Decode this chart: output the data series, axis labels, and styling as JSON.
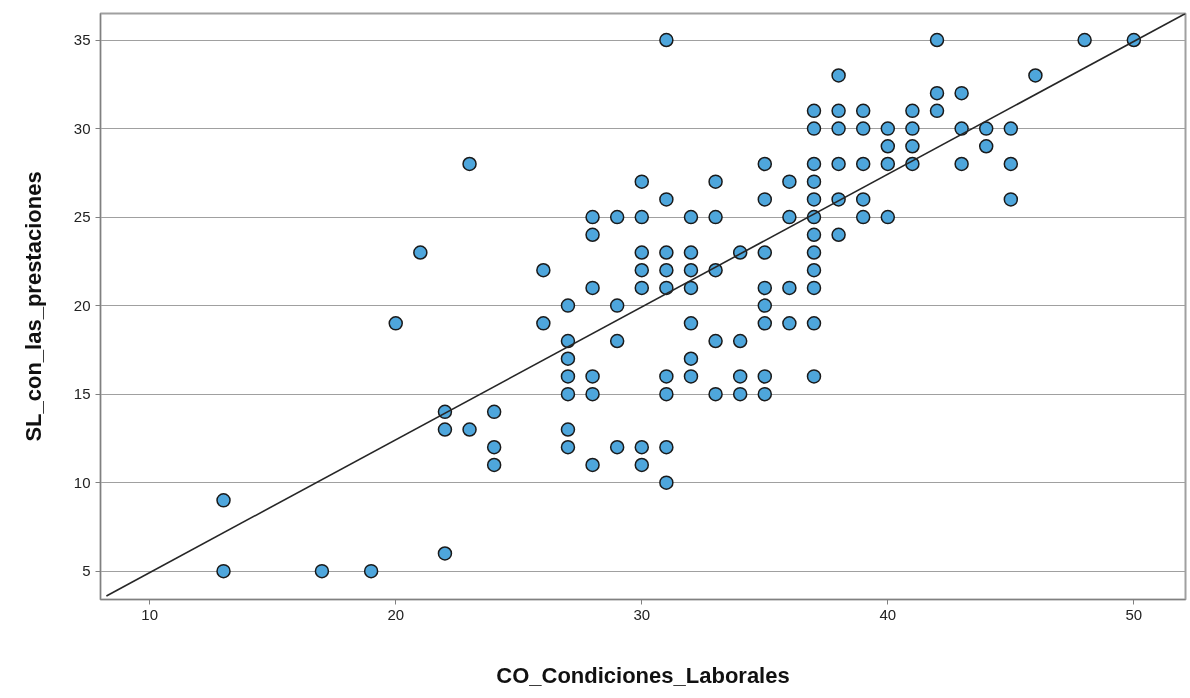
{
  "chart_data": {
    "type": "scatter",
    "xlabel": "CO_Condiciones_Laborales",
    "ylabel": "SL_con_las_prestaciones",
    "xlim": [
      8,
      52.1
    ],
    "ylim": [
      3.4,
      36.5
    ],
    "xticks": [
      10,
      20,
      30,
      40,
      50
    ],
    "yticks": [
      5,
      10,
      15,
      20,
      25,
      30,
      35
    ],
    "grid": "y",
    "marker": "circle",
    "series": [
      {
        "color": "#4ea6dc",
        "x": [
          13,
          13,
          17,
          19,
          20,
          21,
          22,
          22,
          22,
          23,
          23,
          24,
          24,
          24,
          26,
          26,
          27,
          27,
          27,
          27,
          27,
          27,
          27,
          28,
          28,
          28,
          28,
          28,
          28,
          29,
          29,
          29,
          29,
          30,
          30,
          30,
          30,
          30,
          30,
          30,
          31,
          31,
          31,
          31,
          31,
          31,
          31,
          31,
          31,
          32,
          32,
          32,
          32,
          32,
          32,
          32,
          33,
          33,
          33,
          33,
          33,
          34,
          34,
          34,
          34,
          35,
          35,
          35,
          35,
          35,
          35,
          35,
          35,
          36,
          36,
          36,
          36,
          37,
          37,
          37,
          37,
          37,
          37,
          37,
          37,
          37,
          37,
          37,
          37,
          38,
          38,
          38,
          38,
          38,
          38,
          39,
          39,
          39,
          39,
          39,
          40,
          40,
          40,
          40,
          41,
          41,
          41,
          41,
          42,
          42,
          42,
          43,
          43,
          43,
          44,
          44,
          45,
          45,
          45,
          46,
          48,
          50
        ],
        "values": [
          9,
          5,
          5,
          5,
          19,
          23,
          14,
          13,
          6,
          13,
          28,
          14,
          12,
          11,
          22,
          19,
          20,
          18,
          17,
          16,
          15,
          13,
          12,
          25,
          24,
          21,
          16,
          15,
          11,
          25,
          20,
          18,
          12,
          27,
          25,
          23,
          22,
          21,
          12,
          11,
          35,
          26,
          23,
          22,
          21,
          16,
          15,
          12,
          10,
          25,
          23,
          22,
          21,
          19,
          17,
          16,
          27,
          25,
          22,
          18,
          15,
          23,
          18,
          16,
          15,
          28,
          26,
          23,
          21,
          20,
          19,
          16,
          15,
          27,
          25,
          21,
          19,
          31,
          30,
          28,
          27,
          26,
          25,
          24,
          23,
          22,
          21,
          19,
          16,
          33,
          31,
          30,
          28,
          26,
          24,
          31,
          30,
          28,
          26,
          25,
          30,
          29,
          28,
          25,
          31,
          30,
          29,
          28,
          35,
          32,
          31,
          32,
          30,
          28,
          30,
          29,
          30,
          28,
          26,
          33,
          35,
          35
        ]
      },
      {
        "type": "line",
        "color": "#262626",
        "marker": "none",
        "x": [
          8.24,
          52.1
        ],
        "values": [
          3.6,
          36.5
        ]
      }
    ]
  }
}
